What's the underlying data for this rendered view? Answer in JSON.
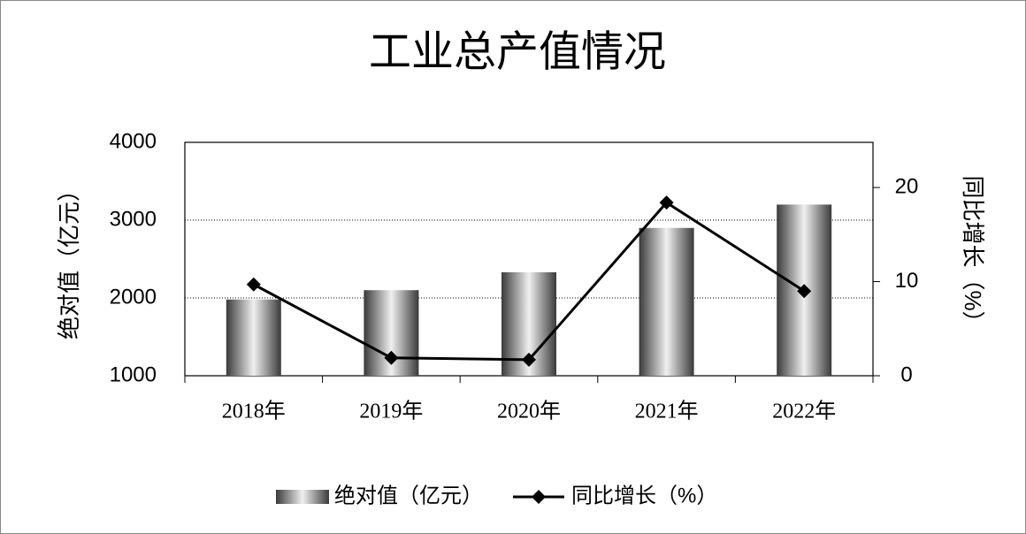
{
  "chart_data": {
    "type": "bar_line",
    "title": "工业总产值情况",
    "y_label": "绝对值（亿元）",
    "y2_label": "同比增长（%）",
    "categories": [
      "2018年",
      "2019年",
      "2020年",
      "2021年",
      "2022年"
    ],
    "series": [
      {
        "name": "绝对值（亿元）",
        "type": "bar",
        "color": "#3a3a3a",
        "values": [
          1980,
          2100,
          2330,
          2900,
          3200
        ]
      },
      {
        "name": "同比增长（%）",
        "type": "line",
        "axis": "y2",
        "color": "#000000",
        "values": [
          9.7,
          1.9,
          1.7,
          18.4,
          9.0
        ]
      }
    ],
    "ylim": [
      1000,
      4000
    ],
    "yticks": [
      1000,
      2000,
      3000,
      4000
    ],
    "y2lim": [
      0,
      24.8
    ],
    "y2ticks": [
      0,
      10,
      20
    ],
    "grid": true,
    "legend": "bottom"
  }
}
